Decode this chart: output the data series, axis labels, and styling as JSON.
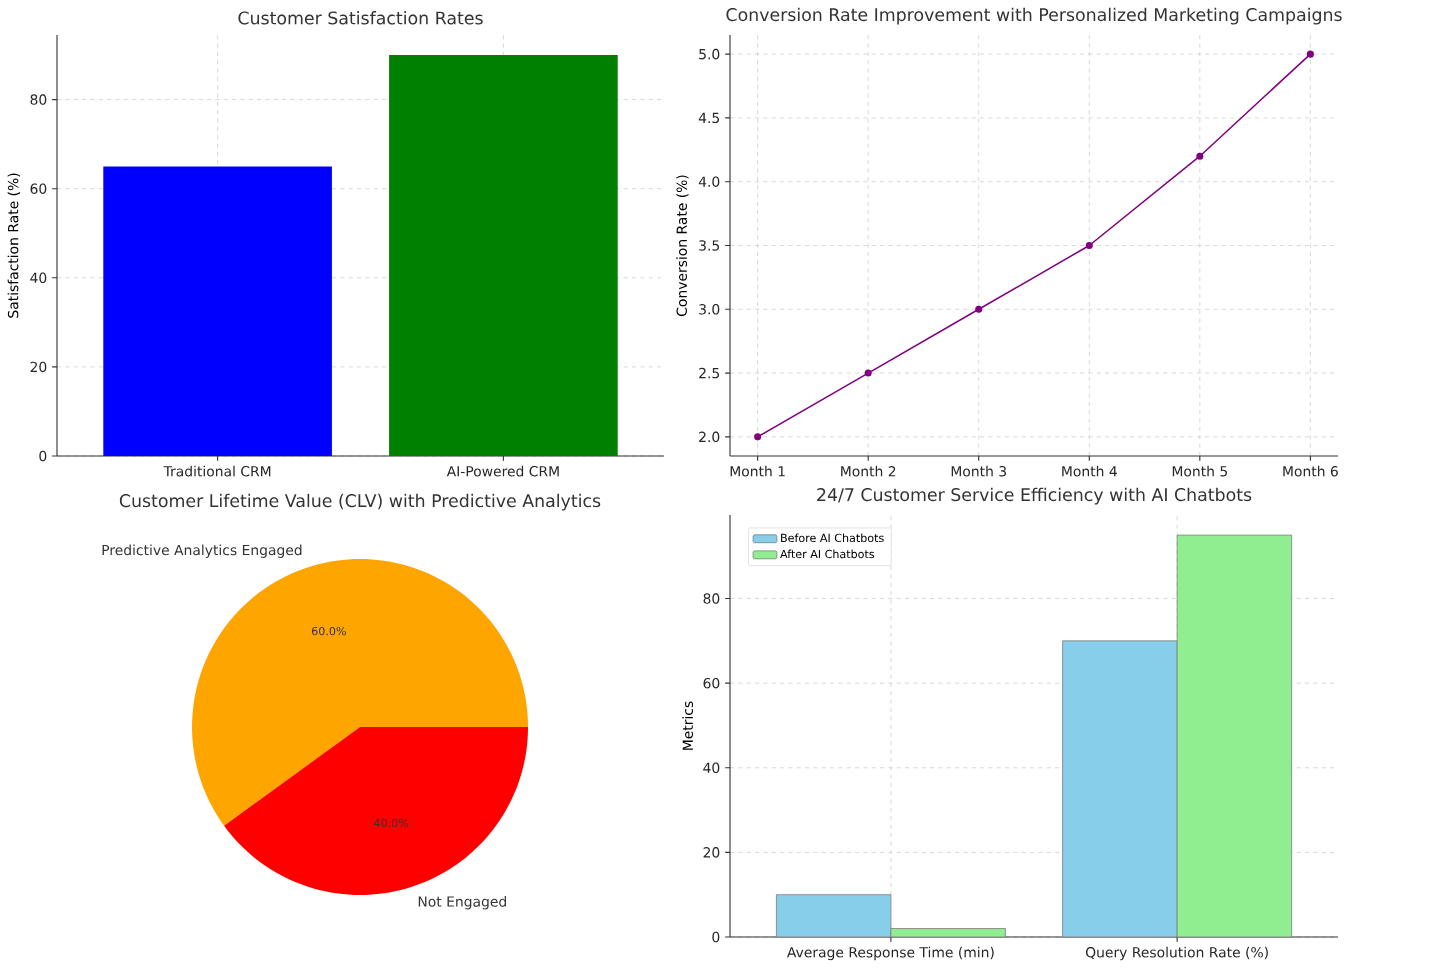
{
  "chart_data": [
    {
      "type": "bar",
      "title": "Customer Satisfaction Rates",
      "ylabel": "Satisfaction Rate (%)",
      "categories": [
        "Traditional CRM",
        "AI-Powered CRM"
      ],
      "values": [
        65,
        90
      ],
      "colors": [
        "#0000ff",
        "#008000"
      ],
      "ylim": [
        0,
        94.5
      ],
      "yticks": [
        0,
        20,
        40,
        60,
        80
      ],
      "grid": true
    },
    {
      "type": "line",
      "title": "Conversion Rate Improvement with Personalized Marketing Campaigns",
      "ylabel": "Conversion Rate (%)",
      "categories": [
        "Month 1",
        "Month 2",
        "Month 3",
        "Month 4",
        "Month 5",
        "Month 6"
      ],
      "values": [
        2.0,
        2.5,
        3.0,
        3.5,
        4.2,
        5.0
      ],
      "color": "#800080",
      "marker": "circle",
      "ylim": [
        1.85,
        5.15
      ],
      "yticks": [
        {
          "value": 2,
          "label": "2.0"
        },
        {
          "value": 2.5,
          "label": "2.5"
        },
        {
          "value": 3,
          "label": "3.0"
        },
        {
          "value": 3.5,
          "label": "3.5"
        },
        {
          "value": 4,
          "label": "4.0"
        },
        {
          "value": 4.5,
          "label": "4.5"
        },
        {
          "value": 5,
          "label": "5.0"
        }
      ],
      "grid": true
    },
    {
      "type": "pie",
      "title": "Customer Lifetime Value (CLV) with Predictive Analytics",
      "categories": [
        "Predictive Analytics Engaged",
        "Not Engaged"
      ],
      "values": [
        60,
        40
      ],
      "colors": [
        "#ffa500",
        "#ff0000"
      ],
      "value_labels": [
        "60.0%",
        "40.0%"
      ]
    },
    {
      "type": "bar",
      "title": "24/7 Customer Service Efficiency with AI Chatbots",
      "ylabel": "Metrics",
      "categories": [
        "Average Response Time (min)",
        "Query Resolution Rate (%)"
      ],
      "series": [
        {
          "name": "Before AI Chatbots",
          "color": "#87ceeb",
          "values": [
            10,
            70
          ]
        },
        {
          "name": "After AI Chatbots",
          "color": "#90ee90",
          "values": [
            2,
            95
          ]
        }
      ],
      "ylim": [
        0,
        99.75
      ],
      "yticks": [
        0,
        20,
        40,
        60,
        80
      ],
      "grid": true,
      "legend": "top left"
    }
  ]
}
